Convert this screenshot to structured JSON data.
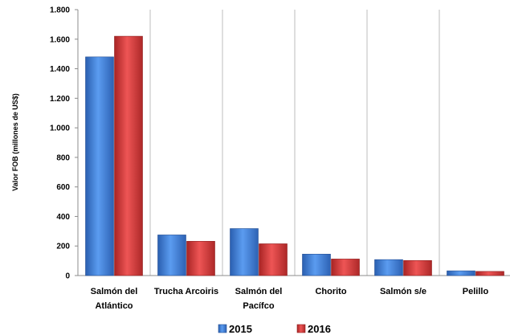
{
  "chart_data": {
    "type": "bar",
    "title": "",
    "xlabel": "",
    "ylabel": "Valor FOB (millones de US$)",
    "ylim": [
      0,
      1800
    ],
    "yticks": [
      {
        "value": 0,
        "label": "0"
      },
      {
        "value": 200,
        "label": "200"
      },
      {
        "value": 400,
        "label": "400"
      },
      {
        "value": 600,
        "label": "600"
      },
      {
        "value": 800,
        "label": "800"
      },
      {
        "value": 1000,
        "label": "1.000"
      },
      {
        "value": 1200,
        "label": "1.200"
      },
      {
        "value": 1400,
        "label": "1.400"
      },
      {
        "value": 1600,
        "label": "1.600"
      },
      {
        "value": 1800,
        "label": "1.800"
      }
    ],
    "categories": [
      [
        "Salmón del",
        "Atlántico"
      ],
      [
        "Trucha Arcoiris"
      ],
      [
        "Salmón del",
        "Pacífco"
      ],
      [
        "Chorito"
      ],
      [
        "Salmón s/e"
      ],
      [
        "Pelillo"
      ]
    ],
    "series": [
      {
        "name": "2015",
        "color": "#3f7fd6",
        "values": [
          1480,
          275,
          318,
          145,
          108,
          32
        ]
      },
      {
        "name": "2016",
        "color": "#d63a3a",
        "values": [
          1620,
          232,
          215,
          112,
          102,
          28
        ]
      }
    ],
    "grid": "vertical-separators",
    "legend_position": "bottom"
  }
}
